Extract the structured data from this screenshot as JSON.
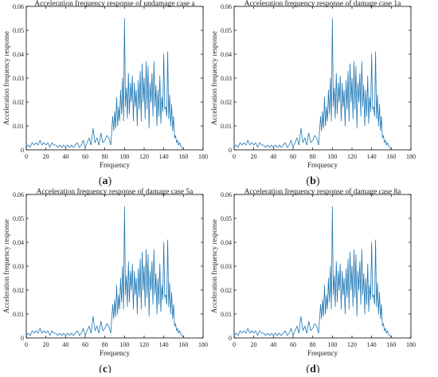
{
  "chart_data": [
    {
      "type": "line",
      "panel_label": "a",
      "title": "Acceleration frequency response of undamage case a",
      "xlabel": "Frequency",
      "ylabel": "Acceleration frequency response",
      "xlim": [
        0,
        180
      ],
      "ylim": [
        0,
        0.06
      ],
      "xticks": [
        "0",
        "20",
        "40",
        "60",
        "80",
        "100",
        "120",
        "140",
        "160",
        "180"
      ],
      "yticks": [
        "0",
        "0.01",
        "0.02",
        "0.03",
        "0.04",
        "0.05",
        "0.06"
      ],
      "grid": false,
      "color": "#1f77b4",
      "series": [
        {
          "x": [
            0,
            2,
            4,
            6,
            8,
            10,
            12,
            14,
            16,
            18,
            20,
            22,
            24,
            26,
            28,
            30,
            32,
            34,
            36,
            38,
            40,
            42,
            44,
            46,
            48,
            50,
            52,
            54,
            56,
            58,
            60,
            62,
            64,
            66,
            68,
            70,
            72,
            74,
            76,
            78,
            80,
            82,
            84,
            86,
            88,
            89,
            90,
            91,
            92,
            93,
            94,
            95,
            96,
            97,
            98,
            99,
            100,
            101,
            102,
            103,
            104,
            105,
            106,
            107,
            108,
            109,
            110,
            111,
            112,
            113,
            114,
            115,
            116,
            117,
            118,
            119,
            120,
            121,
            122,
            123,
            124,
            125,
            126,
            127,
            128,
            129,
            130,
            131,
            132,
            133,
            134,
            135,
            136,
            137,
            138,
            139,
            140,
            141,
            142,
            143,
            144,
            145,
            146,
            147,
            148,
            149,
            150,
            151,
            152,
            153,
            154,
            155,
            156,
            157,
            158,
            159,
            160
          ],
          "y": [
            0.001,
            0.002,
            0.001,
            0.003,
            0.002,
            0.003,
            0.002,
            0.004,
            0.002,
            0.003,
            0.002,
            0.003,
            0.001,
            0.003,
            0.002,
            0.002,
            0.001,
            0.002,
            0.001,
            0.002,
            0.001,
            0.002,
            0.001,
            0.002,
            0.001,
            0.002,
            0.003,
            0.001,
            0.002,
            0.004,
            0.001,
            0.003,
            0.005,
            0.002,
            0.009,
            0.003,
            0.005,
            0.002,
            0.007,
            0.003,
            0.004,
            0.006,
            0.005,
            0.002,
            0.014,
            0.008,
            0.016,
            0.009,
            0.022,
            0.01,
            0.018,
            0.012,
            0.025,
            0.015,
            0.03,
            0.012,
            0.055,
            0.018,
            0.026,
            0.013,
            0.032,
            0.015,
            0.028,
            0.02,
            0.031,
            0.012,
            0.028,
            0.018,
            0.025,
            0.01,
            0.029,
            0.017,
            0.033,
            0.012,
            0.036,
            0.02,
            0.03,
            0.013,
            0.037,
            0.017,
            0.035,
            0.009,
            0.028,
            0.02,
            0.032,
            0.014,
            0.037,
            0.018,
            0.027,
            0.01,
            0.025,
            0.014,
            0.031,
            0.011,
            0.022,
            0.016,
            0.04,
            0.017,
            0.018,
            0.014,
            0.041,
            0.013,
            0.023,
            0.01,
            0.019,
            0.008,
            0.014,
            0.005,
            0.006,
            0.003,
            0.004,
            0.002,
            0.003,
            0.002,
            0.001,
            0.001,
            0.0
          ]
        }
      ]
    },
    {
      "type": "line",
      "panel_label": "b",
      "title": "Acceleration frequency response of damage case 1a",
      "xlabel": "Frequency",
      "ylabel": "Acceleration frequency response",
      "xlim": [
        0,
        180
      ],
      "ylim": [
        0,
        0.06
      ],
      "xticks": [
        "0",
        "20",
        "40",
        "60",
        "80",
        "100",
        "120",
        "140",
        "160",
        "180"
      ],
      "yticks": [
        "0",
        "0.01",
        "0.02",
        "0.03",
        "0.04",
        "0.05",
        "0.06"
      ],
      "grid": false,
      "color": "#1f77b4",
      "series": [
        {
          "x": [
            0,
            2,
            4,
            6,
            8,
            10,
            12,
            14,
            16,
            18,
            20,
            22,
            24,
            26,
            28,
            30,
            32,
            34,
            36,
            38,
            40,
            42,
            44,
            46,
            48,
            50,
            52,
            54,
            56,
            58,
            60,
            62,
            64,
            66,
            68,
            70,
            72,
            74,
            76,
            78,
            80,
            82,
            84,
            86,
            88,
            89,
            90,
            91,
            92,
            93,
            94,
            95,
            96,
            97,
            98,
            99,
            100,
            101,
            102,
            103,
            104,
            105,
            106,
            107,
            108,
            109,
            110,
            111,
            112,
            113,
            114,
            115,
            116,
            117,
            118,
            119,
            120,
            121,
            122,
            123,
            124,
            125,
            126,
            127,
            128,
            129,
            130,
            131,
            132,
            133,
            134,
            135,
            136,
            137,
            138,
            139,
            140,
            141,
            142,
            143,
            144,
            145,
            146,
            147,
            148,
            149,
            150,
            151,
            152,
            153,
            154,
            155,
            156,
            157,
            158,
            159,
            160
          ],
          "y": [
            0.001,
            0.002,
            0.001,
            0.003,
            0.002,
            0.003,
            0.002,
            0.004,
            0.002,
            0.003,
            0.002,
            0.003,
            0.001,
            0.003,
            0.002,
            0.002,
            0.001,
            0.002,
            0.001,
            0.002,
            0.001,
            0.002,
            0.001,
            0.002,
            0.001,
            0.002,
            0.003,
            0.001,
            0.002,
            0.004,
            0.001,
            0.003,
            0.005,
            0.002,
            0.009,
            0.003,
            0.005,
            0.002,
            0.007,
            0.003,
            0.004,
            0.006,
            0.005,
            0.002,
            0.014,
            0.008,
            0.016,
            0.009,
            0.022,
            0.01,
            0.018,
            0.012,
            0.025,
            0.015,
            0.03,
            0.012,
            0.055,
            0.018,
            0.026,
            0.013,
            0.032,
            0.015,
            0.028,
            0.02,
            0.031,
            0.012,
            0.028,
            0.018,
            0.025,
            0.01,
            0.029,
            0.017,
            0.033,
            0.012,
            0.036,
            0.02,
            0.03,
            0.013,
            0.037,
            0.017,
            0.035,
            0.009,
            0.028,
            0.02,
            0.032,
            0.014,
            0.037,
            0.018,
            0.027,
            0.01,
            0.025,
            0.014,
            0.031,
            0.011,
            0.022,
            0.016,
            0.04,
            0.017,
            0.018,
            0.014,
            0.041,
            0.013,
            0.023,
            0.01,
            0.019,
            0.008,
            0.014,
            0.005,
            0.006,
            0.003,
            0.004,
            0.002,
            0.003,
            0.002,
            0.001,
            0.001,
            0.0
          ]
        }
      ]
    },
    {
      "type": "line",
      "panel_label": "c",
      "title": "Acceleration frequency response of damage case 5a",
      "xlabel": "Frequency",
      "ylabel": "Acceleration frequency response",
      "xlim": [
        0,
        180
      ],
      "ylim": [
        0,
        0.06
      ],
      "xticks": [
        "0",
        "20",
        "40",
        "60",
        "80",
        "100",
        "120",
        "140",
        "160",
        "180"
      ],
      "yticks": [
        "0",
        "0.01",
        "0.02",
        "0.03",
        "0.04",
        "0.05",
        "0.06"
      ],
      "grid": false,
      "color": "#1f77b4",
      "series": [
        {
          "x": [
            0,
            2,
            4,
            6,
            8,
            10,
            12,
            14,
            16,
            18,
            20,
            22,
            24,
            26,
            28,
            30,
            32,
            34,
            36,
            38,
            40,
            42,
            44,
            46,
            48,
            50,
            52,
            54,
            56,
            58,
            60,
            62,
            64,
            66,
            68,
            70,
            72,
            74,
            76,
            78,
            80,
            82,
            84,
            86,
            88,
            89,
            90,
            91,
            92,
            93,
            94,
            95,
            96,
            97,
            98,
            99,
            100,
            101,
            102,
            103,
            104,
            105,
            106,
            107,
            108,
            109,
            110,
            111,
            112,
            113,
            114,
            115,
            116,
            117,
            118,
            119,
            120,
            121,
            122,
            123,
            124,
            125,
            126,
            127,
            128,
            129,
            130,
            131,
            132,
            133,
            134,
            135,
            136,
            137,
            138,
            139,
            140,
            141,
            142,
            143,
            144,
            145,
            146,
            147,
            148,
            149,
            150,
            151,
            152,
            153,
            154,
            155,
            156,
            157,
            158,
            159,
            160
          ],
          "y": [
            0.001,
            0.002,
            0.001,
            0.003,
            0.002,
            0.003,
            0.002,
            0.004,
            0.002,
            0.003,
            0.002,
            0.003,
            0.001,
            0.003,
            0.002,
            0.002,
            0.001,
            0.002,
            0.001,
            0.002,
            0.001,
            0.002,
            0.001,
            0.002,
            0.001,
            0.002,
            0.003,
            0.001,
            0.002,
            0.004,
            0.001,
            0.003,
            0.005,
            0.002,
            0.009,
            0.003,
            0.005,
            0.002,
            0.007,
            0.003,
            0.004,
            0.006,
            0.005,
            0.002,
            0.014,
            0.008,
            0.016,
            0.009,
            0.022,
            0.01,
            0.018,
            0.012,
            0.025,
            0.015,
            0.03,
            0.012,
            0.055,
            0.018,
            0.026,
            0.013,
            0.032,
            0.015,
            0.028,
            0.02,
            0.031,
            0.012,
            0.028,
            0.018,
            0.025,
            0.01,
            0.029,
            0.017,
            0.033,
            0.012,
            0.036,
            0.02,
            0.03,
            0.013,
            0.037,
            0.017,
            0.035,
            0.009,
            0.028,
            0.02,
            0.032,
            0.014,
            0.037,
            0.018,
            0.027,
            0.01,
            0.025,
            0.014,
            0.031,
            0.011,
            0.022,
            0.016,
            0.04,
            0.017,
            0.018,
            0.014,
            0.041,
            0.013,
            0.023,
            0.01,
            0.019,
            0.008,
            0.014,
            0.005,
            0.006,
            0.003,
            0.004,
            0.002,
            0.003,
            0.002,
            0.001,
            0.001,
            0.0
          ]
        }
      ]
    },
    {
      "type": "line",
      "panel_label": "d",
      "title": "Acceleration frequency response of damage case 8a",
      "xlabel": "Frequency",
      "ylabel": "Acceleration frequency response",
      "xlim": [
        0,
        180
      ],
      "ylim": [
        0,
        0.06
      ],
      "xticks": [
        "0",
        "20",
        "40",
        "60",
        "80",
        "100",
        "120",
        "140",
        "160",
        "180"
      ],
      "yticks": [
        "0",
        "0.01",
        "0.02",
        "0.03",
        "0.04",
        "0.05",
        "0.06"
      ],
      "grid": false,
      "color": "#1f77b4",
      "series": [
        {
          "x": [
            0,
            2,
            4,
            6,
            8,
            10,
            12,
            14,
            16,
            18,
            20,
            22,
            24,
            26,
            28,
            30,
            32,
            34,
            36,
            38,
            40,
            42,
            44,
            46,
            48,
            50,
            52,
            54,
            56,
            58,
            60,
            62,
            64,
            66,
            68,
            70,
            72,
            74,
            76,
            78,
            80,
            82,
            84,
            86,
            88,
            89,
            90,
            91,
            92,
            93,
            94,
            95,
            96,
            97,
            98,
            99,
            100,
            101,
            102,
            103,
            104,
            105,
            106,
            107,
            108,
            109,
            110,
            111,
            112,
            113,
            114,
            115,
            116,
            117,
            118,
            119,
            120,
            121,
            122,
            123,
            124,
            125,
            126,
            127,
            128,
            129,
            130,
            131,
            132,
            133,
            134,
            135,
            136,
            137,
            138,
            139,
            140,
            141,
            142,
            143,
            144,
            145,
            146,
            147,
            148,
            149,
            150,
            151,
            152,
            153,
            154,
            155,
            156,
            157,
            158,
            159,
            160
          ],
          "y": [
            0.001,
            0.002,
            0.001,
            0.003,
            0.002,
            0.003,
            0.002,
            0.004,
            0.002,
            0.003,
            0.002,
            0.003,
            0.001,
            0.003,
            0.002,
            0.002,
            0.001,
            0.002,
            0.001,
            0.002,
            0.001,
            0.002,
            0.001,
            0.002,
            0.001,
            0.002,
            0.003,
            0.001,
            0.002,
            0.004,
            0.001,
            0.003,
            0.005,
            0.002,
            0.009,
            0.003,
            0.005,
            0.002,
            0.007,
            0.003,
            0.004,
            0.006,
            0.005,
            0.002,
            0.014,
            0.008,
            0.016,
            0.009,
            0.022,
            0.01,
            0.018,
            0.012,
            0.025,
            0.015,
            0.03,
            0.012,
            0.055,
            0.018,
            0.026,
            0.013,
            0.032,
            0.015,
            0.028,
            0.02,
            0.031,
            0.012,
            0.028,
            0.018,
            0.025,
            0.01,
            0.029,
            0.017,
            0.033,
            0.012,
            0.036,
            0.02,
            0.03,
            0.013,
            0.037,
            0.017,
            0.035,
            0.009,
            0.028,
            0.02,
            0.032,
            0.014,
            0.037,
            0.018,
            0.027,
            0.01,
            0.025,
            0.014,
            0.031,
            0.011,
            0.022,
            0.016,
            0.04,
            0.017,
            0.018,
            0.014,
            0.041,
            0.013,
            0.023,
            0.01,
            0.019,
            0.008,
            0.014,
            0.005,
            0.006,
            0.003,
            0.004,
            0.002,
            0.003,
            0.002,
            0.001,
            0.001,
            0.0
          ]
        }
      ]
    }
  ]
}
